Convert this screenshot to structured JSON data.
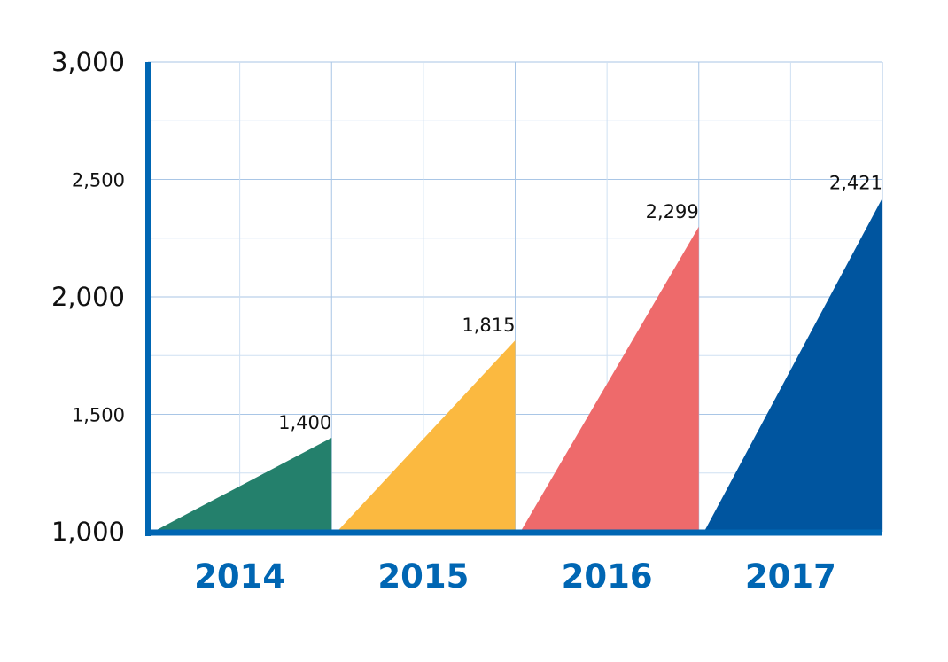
{
  "chart_data": {
    "type": "area",
    "title": "",
    "xlabel": "",
    "ylabel": "",
    "categories": [
      "2014",
      "2015",
      "2016",
      "2017"
    ],
    "values": [
      1400,
      1815,
      2299,
      2421
    ],
    "value_labels": [
      "1,400",
      "1,815",
      "2,299",
      "2,421"
    ],
    "ylim": [
      1000,
      3000
    ],
    "y_ticks": [
      {
        "value": 1000,
        "label": "1,000",
        "emphasis": "major"
      },
      {
        "value": 1500,
        "label": "1,500",
        "emphasis": "minor"
      },
      {
        "value": 2000,
        "label": "2,000",
        "emphasis": "major"
      },
      {
        "value": 2500,
        "label": "2,500",
        "emphasis": "minor"
      },
      {
        "value": 3000,
        "label": "3,000",
        "emphasis": "major"
      }
    ],
    "grid": true,
    "shape": "right-triangle per category",
    "colors": [
      "#24806c",
      "#fbb940",
      "#ee6a6b",
      "#00559f"
    ],
    "axis_color": "#0066b3",
    "grid_color": "#cfe0f2",
    "category_label_color": "#0066b3"
  }
}
